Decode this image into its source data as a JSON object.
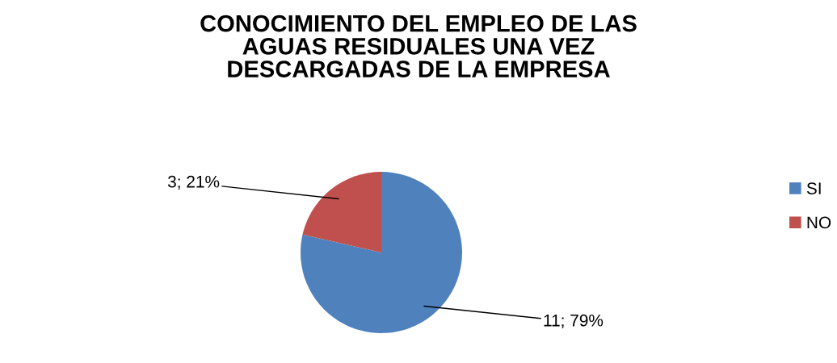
{
  "chart_data": {
    "type": "pie",
    "title": "CONOCIMIENTO DEL EMPLEO DE LAS\nAGUAS RESIDUALES UNA VEZ\nDESCARGADAS DE LA EMPRESA",
    "categories": [
      "SI",
      "NO"
    ],
    "values": [
      11,
      3
    ],
    "colors": [
      "#4f81bd",
      "#c0504d"
    ],
    "value_labels": [
      "11; 79%",
      "3; 21%"
    ],
    "legend": "right"
  }
}
